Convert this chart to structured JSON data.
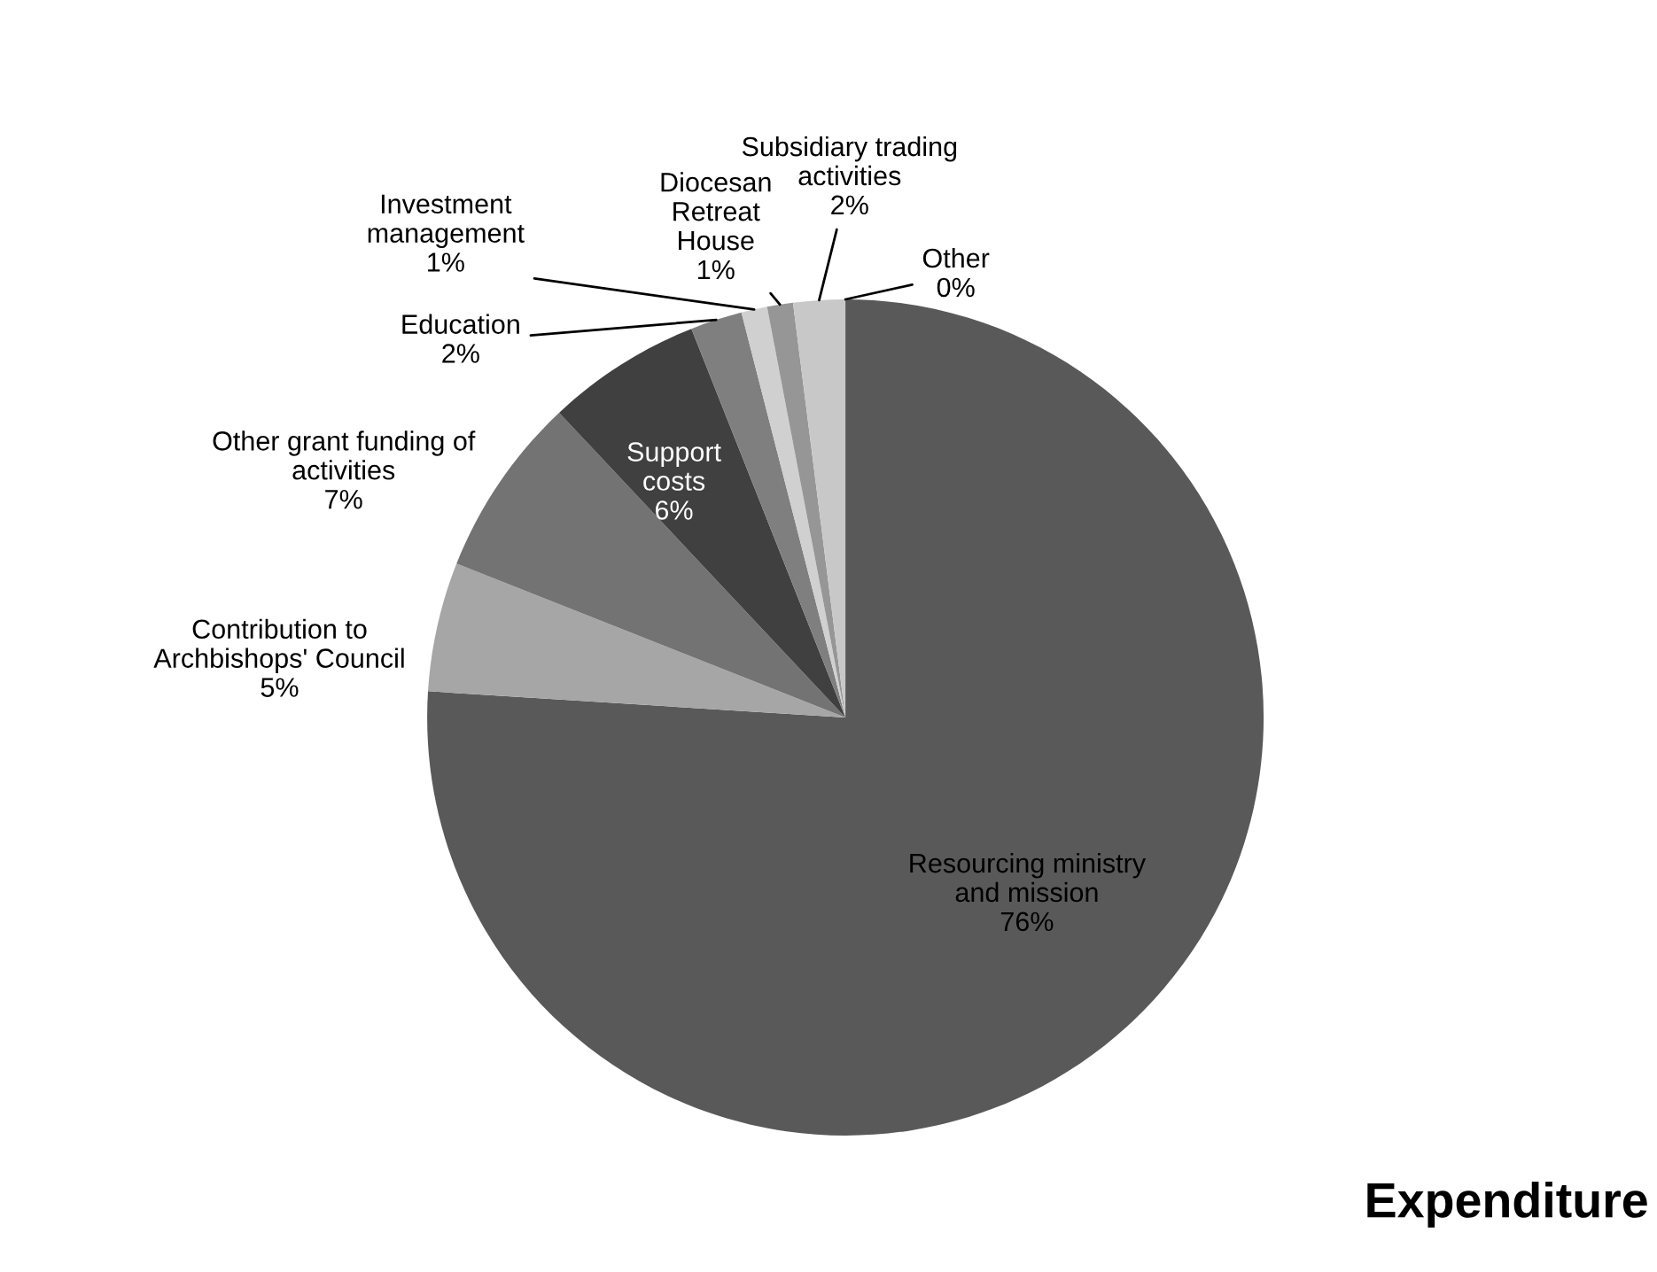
{
  "chart_data": {
    "type": "pie",
    "title": "Expenditure",
    "categories": [
      "Resourcing ministry\nand mission",
      "Contribution to\nArchbishops' Council",
      "Other grant funding of\nactivities",
      "Support\ncosts",
      "Education",
      "Investment\nmanagement",
      "Diocesan\nRetreat\nHouse",
      "Subsidiary trading\nactivities",
      "Other"
    ],
    "values": [
      76,
      5,
      7,
      6,
      2,
      1,
      1,
      2,
      0
    ],
    "value_labels": [
      "76%",
      "5%",
      "7%",
      "6%",
      "2%",
      "1%",
      "1%",
      "2%",
      "0%"
    ],
    "colors": [
      "#595959",
      "#a6a6a6",
      "#737373",
      "#404040",
      "#7f7f7f",
      "#d0d0d0",
      "#969696",
      "#c8c8c8",
      "#e0e0e0"
    ]
  }
}
